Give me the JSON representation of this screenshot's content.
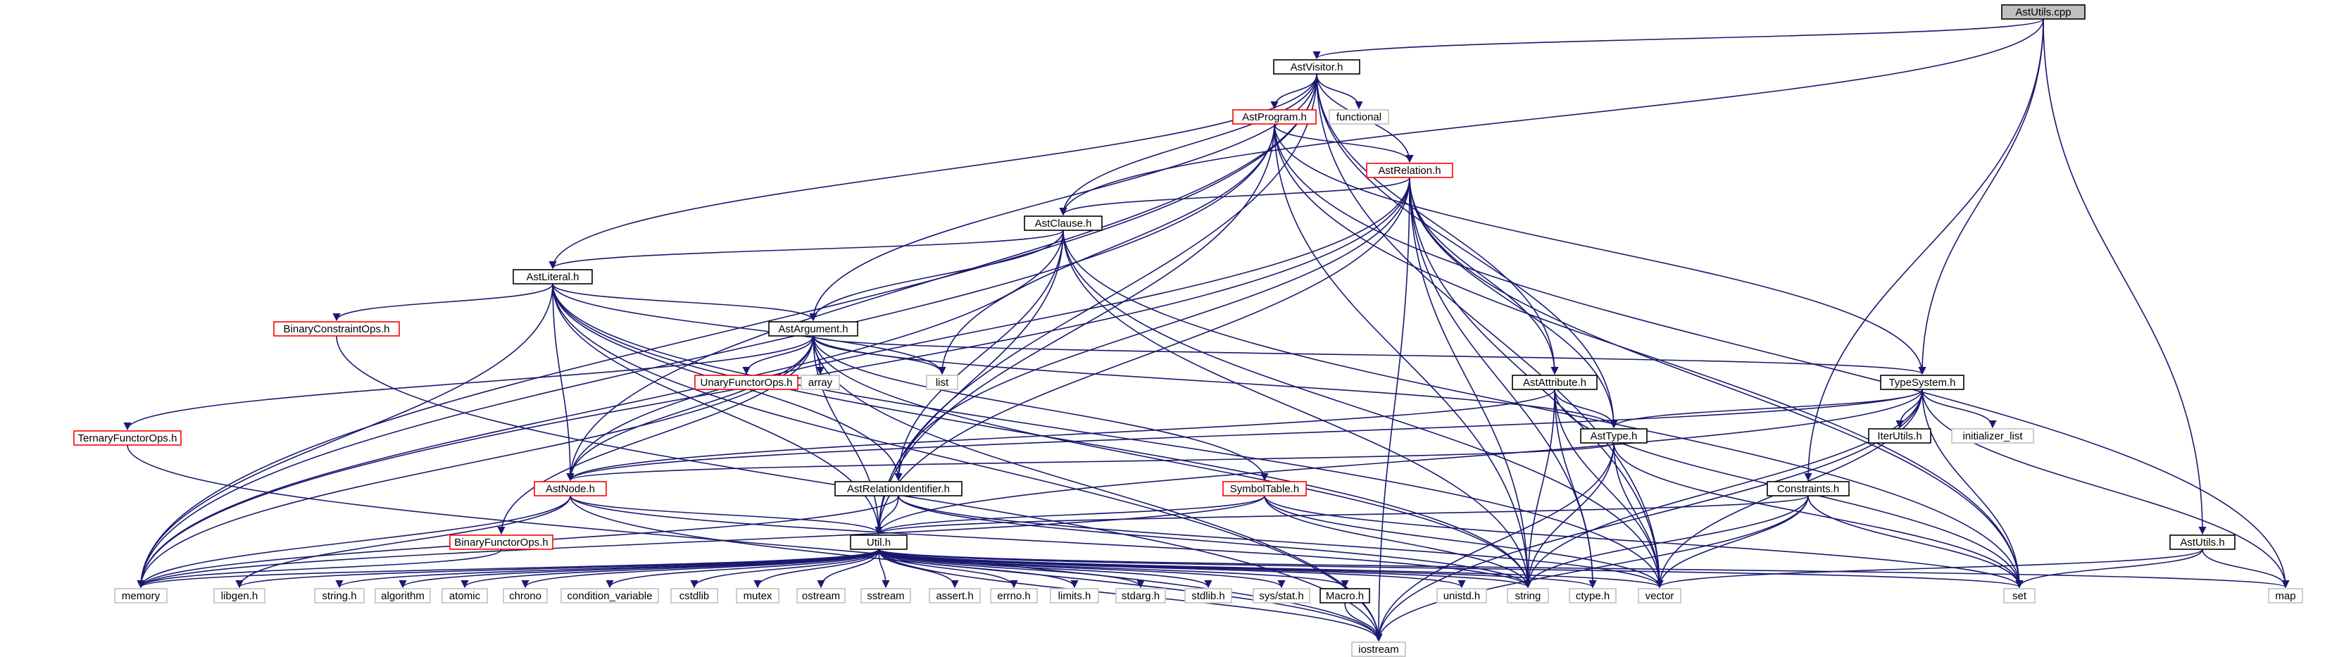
{
  "colors": {
    "edge": "#191970",
    "red_border": "#ff0000",
    "black_border": "#000000",
    "gray_border": "#c0c0c0",
    "root_fill": "#bfbfbf",
    "fill": "#ffffff"
  },
  "nodes": [
    {
      "id": "AstUtils.cpp",
      "label": "AstUtils.cpp",
      "style": "root"
    },
    {
      "id": "AstVisitor.h",
      "label": "AstVisitor.h",
      "style": "black"
    },
    {
      "id": "AstProgram.h",
      "label": "AstProgram.h",
      "style": "red"
    },
    {
      "id": "functional",
      "label": "functional",
      "style": "gray"
    },
    {
      "id": "AstRelation.h",
      "label": "AstRelation.h",
      "style": "red"
    },
    {
      "id": "AstClause.h",
      "label": "AstClause.h",
      "style": "black"
    },
    {
      "id": "AstLiteral.h",
      "label": "AstLiteral.h",
      "style": "black"
    },
    {
      "id": "BinaryConstraintOps.h",
      "label": "BinaryConstraintOps.h",
      "style": "red"
    },
    {
      "id": "AstArgument.h",
      "label": "AstArgument.h",
      "style": "black"
    },
    {
      "id": "UnaryFunctorOps.h",
      "label": "UnaryFunctorOps.h",
      "style": "red"
    },
    {
      "id": "array",
      "label": "array",
      "style": "gray"
    },
    {
      "id": "list",
      "label": "list",
      "style": "gray"
    },
    {
      "id": "TernaryFunctorOps.h",
      "label": "TernaryFunctorOps.h",
      "style": "red"
    },
    {
      "id": "AstAttribute.h",
      "label": "AstAttribute.h",
      "style": "black"
    },
    {
      "id": "TypeSystem.h",
      "label": "TypeSystem.h",
      "style": "black"
    },
    {
      "id": "AstType.h",
      "label": "AstType.h",
      "style": "black"
    },
    {
      "id": "IterUtils.h",
      "label": "IterUtils.h",
      "style": "black"
    },
    {
      "id": "initializer_list",
      "label": "initializer_list",
      "style": "gray"
    },
    {
      "id": "AstNode.h",
      "label": "AstNode.h",
      "style": "red"
    },
    {
      "id": "AstRelationIdentifier.h",
      "label": "AstRelationIdentifier.h",
      "style": "black"
    },
    {
      "id": "SymbolTable.h",
      "label": "SymbolTable.h",
      "style": "red"
    },
    {
      "id": "Constraints.h",
      "label": "Constraints.h",
      "style": "black"
    },
    {
      "id": "BinaryFunctorOps.h",
      "label": "BinaryFunctorOps.h",
      "style": "red"
    },
    {
      "id": "Util.h",
      "label": "Util.h",
      "style": "black"
    },
    {
      "id": "AstUtils.h",
      "label": "AstUtils.h",
      "style": "black"
    },
    {
      "id": "memory",
      "label": "memory",
      "style": "gray"
    },
    {
      "id": "libgen.h",
      "label": "libgen.h",
      "style": "gray"
    },
    {
      "id": "string.h",
      "label": "string.h",
      "style": "gray"
    },
    {
      "id": "algorithm",
      "label": "algorithm",
      "style": "gray"
    },
    {
      "id": "atomic",
      "label": "atomic",
      "style": "gray"
    },
    {
      "id": "chrono",
      "label": "chrono",
      "style": "gray"
    },
    {
      "id": "condition_variable",
      "label": "condition_variable",
      "style": "gray"
    },
    {
      "id": "cstdlib",
      "label": "cstdlib",
      "style": "gray"
    },
    {
      "id": "mutex",
      "label": "mutex",
      "style": "gray"
    },
    {
      "id": "ostream",
      "label": "ostream",
      "style": "gray"
    },
    {
      "id": "sstream",
      "label": "sstream",
      "style": "gray"
    },
    {
      "id": "assert.h",
      "label": "assert.h",
      "style": "gray"
    },
    {
      "id": "errno.h",
      "label": "errno.h",
      "style": "gray"
    },
    {
      "id": "limits.h",
      "label": "limits.h",
      "style": "gray"
    },
    {
      "id": "stdarg.h",
      "label": "stdarg.h",
      "style": "gray"
    },
    {
      "id": "stdlib.h",
      "label": "stdlib.h",
      "style": "gray"
    },
    {
      "id": "sys/stat.h",
      "label": "sys/stat.h",
      "style": "gray"
    },
    {
      "id": "Macro.h",
      "label": "Macro.h",
      "style": "black"
    },
    {
      "id": "unistd.h",
      "label": "unistd.h",
      "style": "gray"
    },
    {
      "id": "string",
      "label": "string",
      "style": "gray"
    },
    {
      "id": "ctype.h",
      "label": "ctype.h",
      "style": "gray"
    },
    {
      "id": "vector",
      "label": "vector",
      "style": "gray"
    },
    {
      "id": "set",
      "label": "set",
      "style": "gray"
    },
    {
      "id": "map",
      "label": "map",
      "style": "gray"
    },
    {
      "id": "iostream",
      "label": "iostream",
      "style": "gray"
    }
  ],
  "edges": [
    [
      "AstUtils.cpp",
      "AstVisitor.h"
    ],
    [
      "AstUtils.cpp",
      "AstClause.h"
    ],
    [
      "AstUtils.cpp",
      "TypeSystem.h"
    ],
    [
      "AstUtils.cpp",
      "Constraints.h"
    ],
    [
      "AstUtils.cpp",
      "AstUtils.h"
    ],
    [
      "AstVisitor.h",
      "AstProgram.h"
    ],
    [
      "AstVisitor.h",
      "functional"
    ],
    [
      "AstVisitor.h",
      "AstRelation.h"
    ],
    [
      "AstVisitor.h",
      "AstClause.h"
    ],
    [
      "AstVisitor.h",
      "AstLiteral.h"
    ],
    [
      "AstVisitor.h",
      "AstArgument.h"
    ],
    [
      "AstVisitor.h",
      "AstAttribute.h"
    ],
    [
      "AstVisitor.h",
      "AstType.h"
    ],
    [
      "AstVisitor.h",
      "AstNode.h"
    ],
    [
      "AstVisitor.h",
      "Util.h"
    ],
    [
      "AstVisitor.h",
      "memory"
    ],
    [
      "AstVisitor.h",
      "vector"
    ],
    [
      "AstProgram.h",
      "AstRelation.h"
    ],
    [
      "AstProgram.h",
      "TypeSystem.h"
    ],
    [
      "AstProgram.h",
      "list"
    ],
    [
      "AstProgram.h",
      "memory"
    ],
    [
      "AstProgram.h",
      "Util.h"
    ],
    [
      "AstProgram.h",
      "string"
    ],
    [
      "AstProgram.h",
      "set"
    ],
    [
      "AstProgram.h",
      "map"
    ],
    [
      "AstRelation.h",
      "AstClause.h"
    ],
    [
      "AstRelation.h",
      "AstAttribute.h"
    ],
    [
      "AstRelation.h",
      "AstType.h"
    ],
    [
      "AstRelation.h",
      "AstRelationIdentifier.h"
    ],
    [
      "AstRelation.h",
      "AstNode.h"
    ],
    [
      "AstRelation.h",
      "memory"
    ],
    [
      "AstRelation.h",
      "string"
    ],
    [
      "AstRelation.h",
      "ctype.h"
    ],
    [
      "AstRelation.h",
      "vector"
    ],
    [
      "AstRelation.h",
      "set"
    ],
    [
      "AstRelation.h",
      "iostream"
    ],
    [
      "AstRelation.h",
      "Util.h"
    ],
    [
      "AstClause.h",
      "AstLiteral.h"
    ],
    [
      "AstClause.h",
      "AstArgument.h"
    ],
    [
      "AstClause.h",
      "AstRelationIdentifier.h"
    ],
    [
      "AstClause.h",
      "Util.h"
    ],
    [
      "AstClause.h",
      "memory"
    ],
    [
      "AstClause.h",
      "string"
    ],
    [
      "AstClause.h",
      "vector"
    ],
    [
      "AstClause.h",
      "set"
    ],
    [
      "AstLiteral.h",
      "BinaryConstraintOps.h"
    ],
    [
      "AstLiteral.h",
      "AstArgument.h"
    ],
    [
      "AstLiteral.h",
      "AstNode.h"
    ],
    [
      "AstLiteral.h",
      "AstRelationIdentifier.h"
    ],
    [
      "AstLiteral.h",
      "Util.h"
    ],
    [
      "AstLiteral.h",
      "list"
    ],
    [
      "AstLiteral.h",
      "memory"
    ],
    [
      "AstLiteral.h",
      "string"
    ],
    [
      "AstLiteral.h",
      "vector"
    ],
    [
      "AstLiteral.h",
      "iostream"
    ],
    [
      "AstArgument.h",
      "UnaryFunctorOps.h"
    ],
    [
      "AstArgument.h",
      "array"
    ],
    [
      "AstArgument.h",
      "list"
    ],
    [
      "AstArgument.h",
      "TypeSystem.h"
    ],
    [
      "AstArgument.h",
      "TernaryFunctorOps.h"
    ],
    [
      "AstArgument.h",
      "AstType.h"
    ],
    [
      "AstArgument.h",
      "AstNode.h"
    ],
    [
      "AstArgument.h",
      "SymbolTable.h"
    ],
    [
      "AstArgument.h",
      "BinaryFunctorOps.h"
    ],
    [
      "AstArgument.h",
      "Util.h"
    ],
    [
      "AstArgument.h",
      "memory"
    ],
    [
      "AstArgument.h",
      "string"
    ],
    [
      "AstArgument.h",
      "iostream"
    ],
    [
      "TernaryFunctorOps.h",
      "iostream"
    ],
    [
      "BinaryConstraintOps.h",
      "iostream"
    ],
    [
      "AstAttribute.h",
      "AstType.h"
    ],
    [
      "AstAttribute.h",
      "AstNode.h"
    ],
    [
      "AstAttribute.h",
      "string"
    ],
    [
      "AstAttribute.h",
      "ctype.h"
    ],
    [
      "AstAttribute.h",
      "vector"
    ],
    [
      "AstAttribute.h",
      "set"
    ],
    [
      "TypeSystem.h",
      "AstType.h"
    ],
    [
      "TypeSystem.h",
      "IterUtils.h"
    ],
    [
      "TypeSystem.h",
      "initializer_list"
    ],
    [
      "TypeSystem.h",
      "Util.h"
    ],
    [
      "TypeSystem.h",
      "AstNode.h"
    ],
    [
      "TypeSystem.h",
      "string"
    ],
    [
      "TypeSystem.h",
      "vector"
    ],
    [
      "TypeSystem.h",
      "set"
    ],
    [
      "TypeSystem.h",
      "map"
    ],
    [
      "TypeSystem.h",
      "iostream"
    ],
    [
      "AstType.h",
      "AstNode.h"
    ],
    [
      "AstType.h",
      "string"
    ],
    [
      "AstType.h",
      "vector"
    ],
    [
      "AstType.h",
      "set"
    ],
    [
      "AstType.h",
      "iostream"
    ],
    [
      "AstNode.h",
      "Util.h"
    ],
    [
      "AstNode.h",
      "memory"
    ],
    [
      "AstNode.h",
      "string"
    ],
    [
      "AstNode.h",
      "libgen.h"
    ],
    [
      "AstNode.h",
      "iostream"
    ],
    [
      "AstRelationIdentifier.h",
      "Util.h"
    ],
    [
      "AstRelationIdentifier.h",
      "string"
    ],
    [
      "AstRelationIdentifier.h",
      "vector"
    ],
    [
      "AstRelationIdentifier.h",
      "memory"
    ],
    [
      "SymbolTable.h",
      "Util.h"
    ],
    [
      "SymbolTable.h",
      "string"
    ],
    [
      "SymbolTable.h",
      "vector"
    ],
    [
      "SymbolTable.h",
      "memory"
    ],
    [
      "SymbolTable.h",
      "set"
    ],
    [
      "BinaryFunctorOps.h",
      "memory"
    ],
    [
      "Constraints.h",
      "Util.h"
    ],
    [
      "Constraints.h",
      "vector"
    ],
    [
      "Constraints.h",
      "set"
    ],
    [
      "Constraints.h",
      "iostream"
    ],
    [
      "Constraints.h",
      "string"
    ],
    [
      "AstUtils.h",
      "vector"
    ],
    [
      "AstUtils.h",
      "set"
    ],
    [
      "AstUtils.h",
      "map"
    ],
    [
      "Util.h",
      "memory"
    ],
    [
      "Util.h",
      "libgen.h"
    ],
    [
      "Util.h",
      "string.h"
    ],
    [
      "Util.h",
      "algorithm"
    ],
    [
      "Util.h",
      "atomic"
    ],
    [
      "Util.h",
      "chrono"
    ],
    [
      "Util.h",
      "condition_variable"
    ],
    [
      "Util.h",
      "cstdlib"
    ],
    [
      "Util.h",
      "mutex"
    ],
    [
      "Util.h",
      "ostream"
    ],
    [
      "Util.h",
      "sstream"
    ],
    [
      "Util.h",
      "assert.h"
    ],
    [
      "Util.h",
      "errno.h"
    ],
    [
      "Util.h",
      "limits.h"
    ],
    [
      "Util.h",
      "stdarg.h"
    ],
    [
      "Util.h",
      "stdlib.h"
    ],
    [
      "Util.h",
      "sys/stat.h"
    ],
    [
      "Util.h",
      "Macro.h"
    ],
    [
      "Util.h",
      "unistd.h"
    ],
    [
      "Util.h",
      "string"
    ],
    [
      "Util.h",
      "ctype.h"
    ],
    [
      "Util.h",
      "vector"
    ],
    [
      "Util.h",
      "set"
    ],
    [
      "Util.h",
      "map"
    ],
    [
      "Util.h",
      "iostream"
    ],
    [
      "Macro.h",
      "iostream"
    ]
  ]
}
